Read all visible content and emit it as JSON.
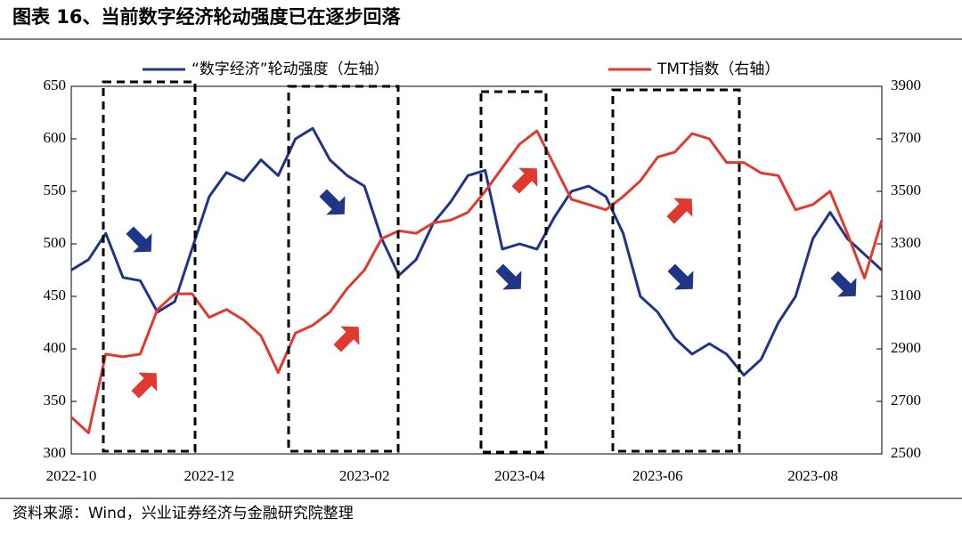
{
  "chart_data": {
    "type": "line",
    "title": "图表 16、当前数字经济轮动强度已在逐步回落",
    "source": "资料来源：Wind，兴业证券经济与金融研究院整理",
    "categories": [
      "2022-10",
      null,
      null,
      null,
      null,
      null,
      null,
      null,
      "2022-12",
      null,
      null,
      null,
      null,
      null,
      null,
      null,
      null,
      "2023-02",
      null,
      null,
      null,
      null,
      null,
      null,
      null,
      null,
      "2023-04",
      null,
      null,
      null,
      null,
      null,
      null,
      null,
      "2023-06",
      null,
      null,
      null,
      null,
      null,
      null,
      null,
      null,
      "2023-08",
      null,
      null,
      null,
      null
    ],
    "series": [
      {
        "name": "“数字经济”轮动强度（左轴）",
        "color": "#1f3585",
        "axis": "y",
        "values": [
          475,
          485,
          510,
          468,
          465,
          435,
          445,
          495,
          545,
          568,
          560,
          580,
          565,
          600,
          610,
          580,
          565,
          555,
          505,
          470,
          485,
          520,
          540,
          565,
          570,
          495,
          500,
          495,
          525,
          550,
          555,
          545,
          510,
          450,
          435,
          410,
          395,
          405,
          395,
          375,
          390,
          425,
          450,
          505,
          530,
          505,
          490,
          475
        ]
      },
      {
        "name": "TMT指数（右轴）",
        "color": "#e0392f",
        "axis": "y2",
        "values": [
          2640,
          2580,
          2880,
          2870,
          2880,
          3050,
          3110,
          3110,
          3020,
          3050,
          3010,
          2950,
          2810,
          2960,
          2990,
          3040,
          3130,
          3200,
          3320,
          3350,
          3340,
          3380,
          3390,
          3420,
          3500,
          3590,
          3680,
          3730,
          3600,
          3470,
          3450,
          3430,
          3480,
          3540,
          3630,
          3650,
          3720,
          3700,
          3610,
          3610,
          3570,
          3560,
          3430,
          3450,
          3500,
          3340,
          3170,
          3390
        ]
      }
    ],
    "ylim": [
      300,
      650
    ],
    "yticks": [
      300,
      350,
      400,
      450,
      500,
      550,
      600,
      650
    ],
    "y2lim": [
      2500,
      3900
    ],
    "y2ticks": [
      2500,
      2700,
      2900,
      3100,
      3300,
      3500,
      3700,
      3900
    ]
  }
}
